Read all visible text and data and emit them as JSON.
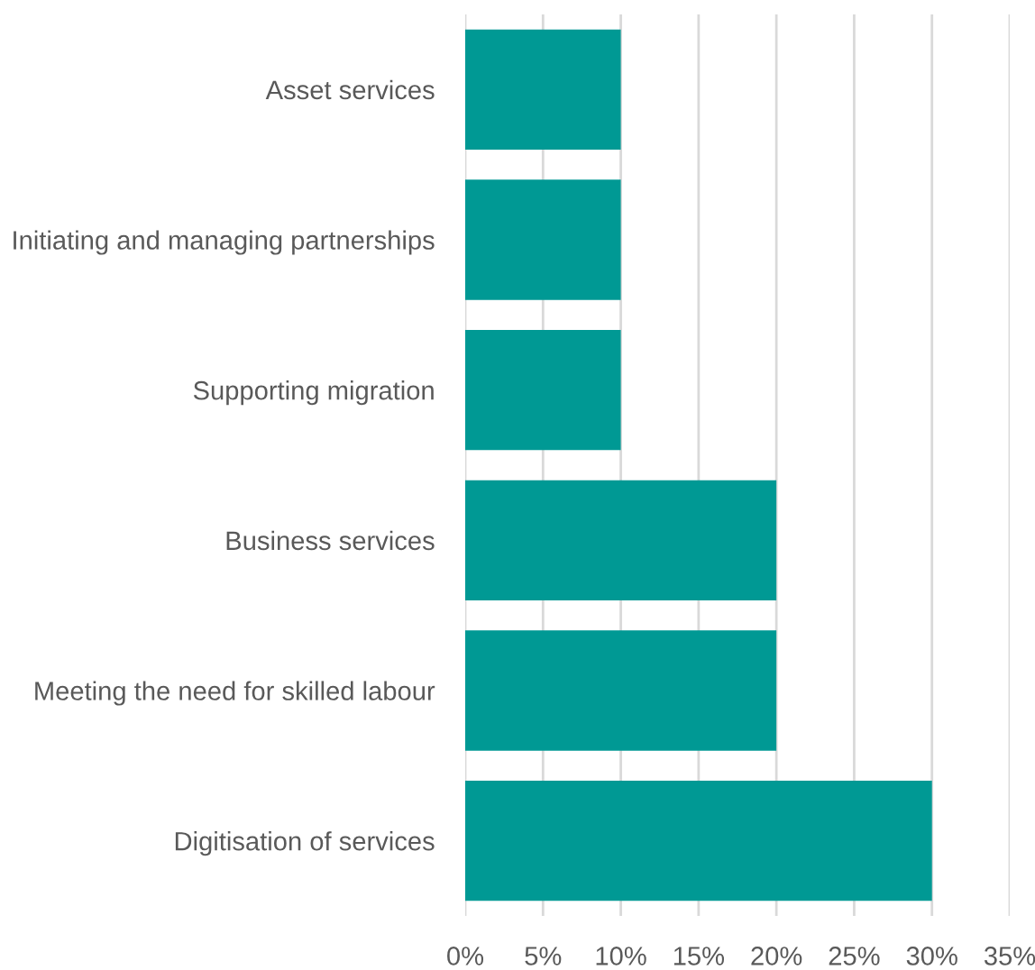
{
  "chart_data": {
    "type": "bar",
    "orientation": "horizontal",
    "categories": [
      "Asset services",
      "Initiating and managing partnerships",
      "Supporting migration",
      "Business services",
      "Meeting the need for skilled labour",
      "Digitisation of services"
    ],
    "values": [
      10,
      10,
      10,
      20,
      20,
      30
    ],
    "color": "#009994",
    "xlim": [
      0,
      35
    ],
    "xticks": [
      {
        "value": 0,
        "label": "0%"
      },
      {
        "value": 5,
        "label": "5%"
      },
      {
        "value": 10,
        "label": "10%"
      },
      {
        "value": 15,
        "label": "15%"
      },
      {
        "value": 20,
        "label": "20%"
      },
      {
        "value": 25,
        "label": "25%"
      },
      {
        "value": 30,
        "label": "30%"
      },
      {
        "value": 35,
        "label": "35%"
      }
    ],
    "grid": "x"
  }
}
